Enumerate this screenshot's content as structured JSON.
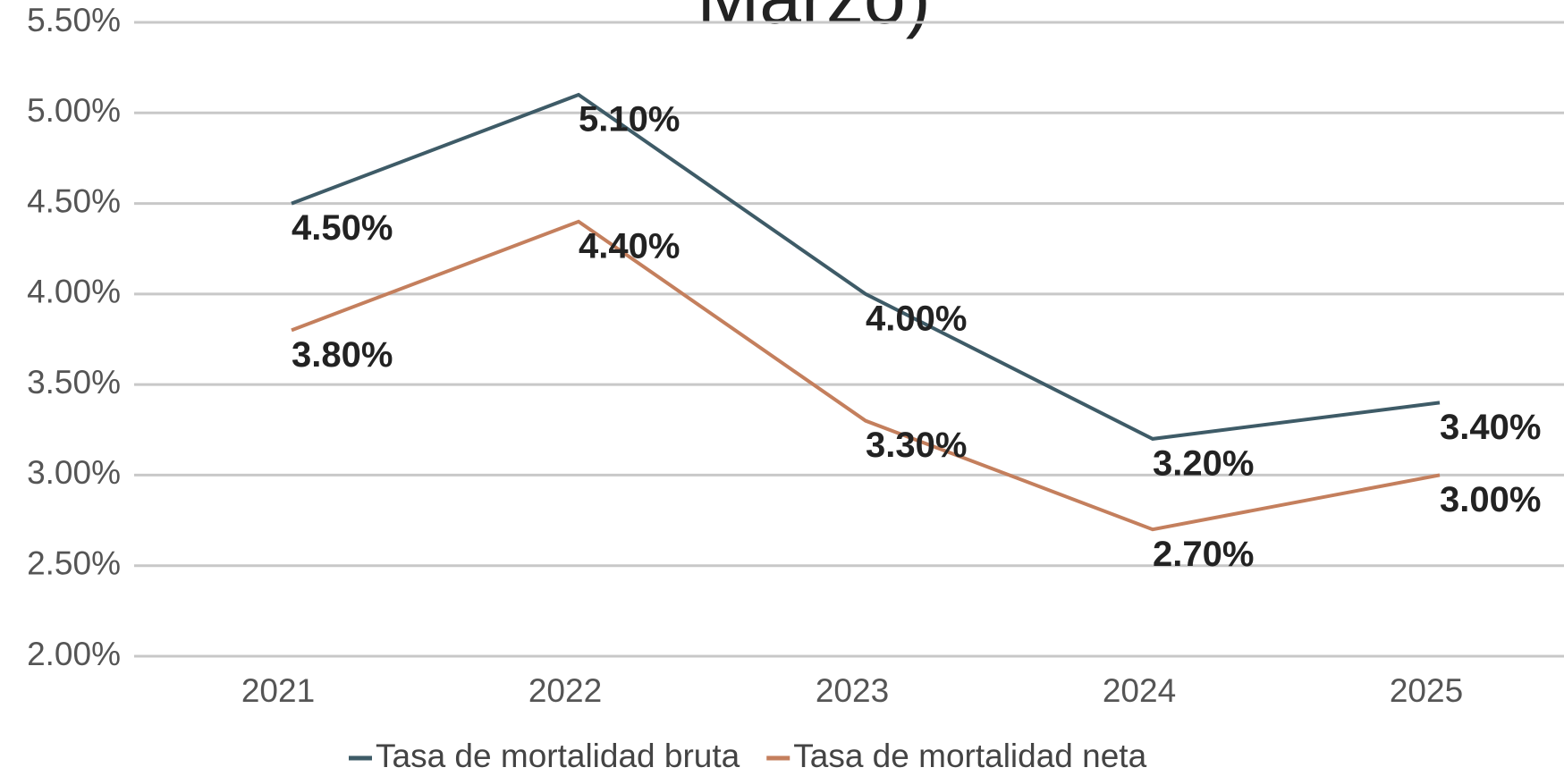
{
  "chart_data": {
    "type": "line",
    "title": "Marzo)",
    "categories": [
      "2021",
      "2022",
      "2023",
      "2024",
      "2025"
    ],
    "series": [
      {
        "name": "Tasa de mortalidad bruta",
        "color": "#3e5b67",
        "values": [
          4.5,
          5.1,
          4.0,
          3.2,
          3.4
        ],
        "value_labels": [
          "4.50%",
          "5.10%",
          "4.00%",
          "3.20%",
          "3.40%"
        ]
      },
      {
        "name": "Tasa de mortalidad neta",
        "color": "#c47f5d",
        "values": [
          3.8,
          4.4,
          3.3,
          2.7,
          3.0
        ],
        "value_labels": [
          "3.80%",
          "4.40%",
          "3.30%",
          "2.70%",
          "3.00%"
        ]
      }
    ],
    "ylim": [
      2.0,
      5.5
    ],
    "yticks": [
      {
        "value": 2.0,
        "label": "2.00%"
      },
      {
        "value": 2.5,
        "label": "2.50%"
      },
      {
        "value": 3.0,
        "label": "3.00%"
      },
      {
        "value": 3.5,
        "label": "3.50%"
      },
      {
        "value": 4.0,
        "label": "4.00%"
      },
      {
        "value": 4.5,
        "label": "4.50%"
      },
      {
        "value": 5.0,
        "label": "5.00%"
      },
      {
        "value": 5.5,
        "label": "5.50%"
      }
    ],
    "grid": true,
    "legend": "bottom"
  }
}
